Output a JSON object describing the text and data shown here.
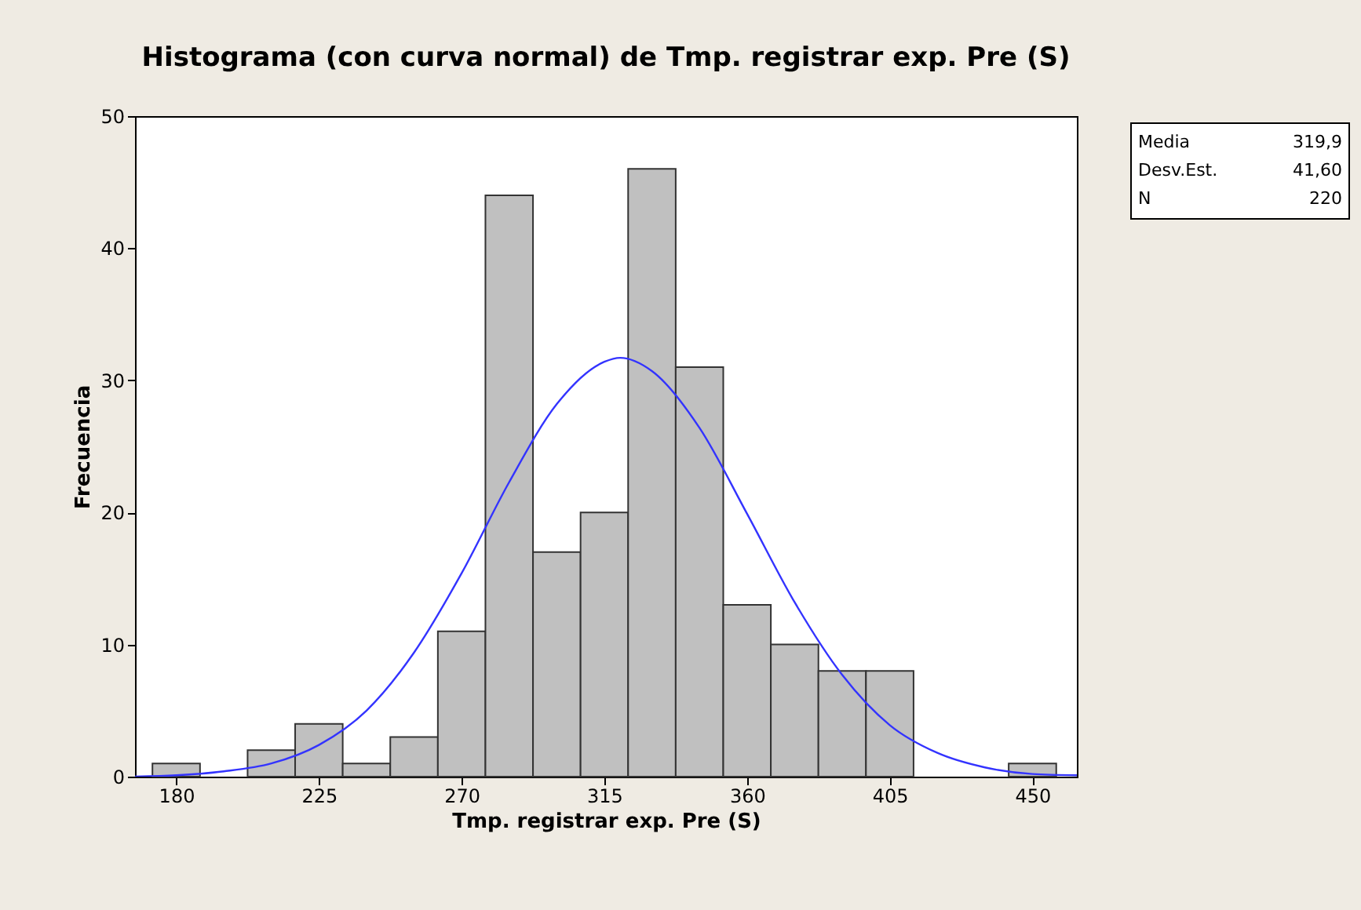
{
  "chart_data": {
    "type": "histogram",
    "title": "Histograma (con curva normal) de Tmp. registrar exp. Pre (S)",
    "xlabel": "Tmp. registrar exp. Pre (S)",
    "ylabel": "Frecuencia",
    "bins": [
      172.5,
      187.5,
      202.5,
      217.5,
      232.5,
      247.5,
      262.5,
      277.5,
      292.5,
      307.5,
      322.5,
      337.5,
      352.5,
      367.5,
      382.5,
      397.5,
      412.5,
      427.5,
      442.5,
      457.5
    ],
    "values": [
      1,
      0,
      2,
      4,
      1,
      3,
      11,
      44,
      17,
      20,
      46,
      31,
      13,
      10,
      8,
      8,
      0,
      0,
      1
    ],
    "color": "#c0c0c0",
    "series": [
      {
        "type": "line",
        "color": "#3333ff",
        "x": [
          167,
          180,
          195,
          210,
          225,
          240,
          255,
          270,
          285,
          300,
          315,
          320,
          330,
          345,
          360,
          375,
          390,
          405,
          420,
          435,
          450,
          464
        ],
        "values": [
          0,
          0.1,
          0.4,
          1,
          2.4,
          5,
          9.4,
          15.4,
          22.3,
          28.2,
          31.4,
          31.7,
          30.7,
          26.4,
          19.9,
          13.2,
          7.7,
          3.9,
          1.8,
          0.7,
          0.2,
          0.1
        ]
      }
    ],
    "xlim": [
      167,
      464
    ],
    "xticks": [
      180,
      225,
      270,
      315,
      360,
      405,
      450
    ],
    "ylim": [
      0,
      50
    ],
    "yticks": [
      0,
      10,
      20,
      30,
      40,
      50
    ],
    "annotations": [
      "Media 319,9",
      "Desv.Est. 41,60",
      "N 220"
    ]
  }
}
